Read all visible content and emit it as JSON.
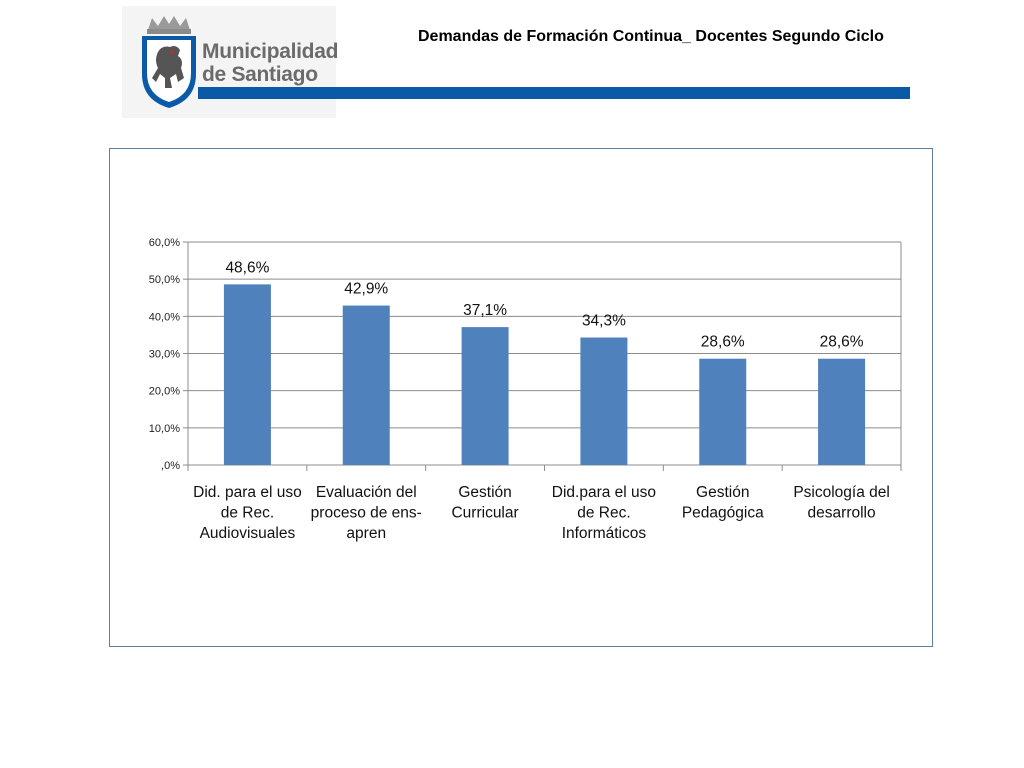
{
  "header": {
    "title": "Demandas de Formación Continua_ Docentes Segundo Ciclo",
    "logo_line1": "Municipalidad",
    "logo_line2": "de Santiago"
  },
  "colors": {
    "bar": "#4f81bd",
    "header_bar": "#0a5aa8",
    "frame": "#5a7fa8",
    "gridline": "#8c8c8c"
  },
  "chart_data": {
    "type": "bar",
    "categories": [
      [
        "Did. para el uso",
        "de Rec.",
        "Audiovisuales"
      ],
      [
        "Evaluación del",
        "proceso de ens-",
        "apren"
      ],
      [
        "Gestión",
        "Curricular"
      ],
      [
        "Did.para el uso",
        "de Rec.",
        "Informáticos"
      ],
      [
        "Gestión",
        "Pedagógica"
      ],
      [
        "Psicología del",
        "desarrollo"
      ]
    ],
    "values": [
      48.6,
      42.9,
      37.1,
      34.3,
      28.6,
      28.6
    ],
    "value_labels": [
      "48,6%",
      "42,9%",
      "37,1%",
      "34,3%",
      "28,6%",
      "28,6%"
    ],
    "y_ticks": [
      0,
      10,
      20,
      30,
      40,
      50,
      60
    ],
    "y_tick_labels": [
      ",0%",
      "10,0%",
      "20,0%",
      "30,0%",
      "40,0%",
      "50,0%",
      "60,0%"
    ],
    "ylim": [
      0,
      60
    ],
    "grid": true,
    "legend": "none",
    "title": "",
    "xlabel": "",
    "ylabel": ""
  }
}
